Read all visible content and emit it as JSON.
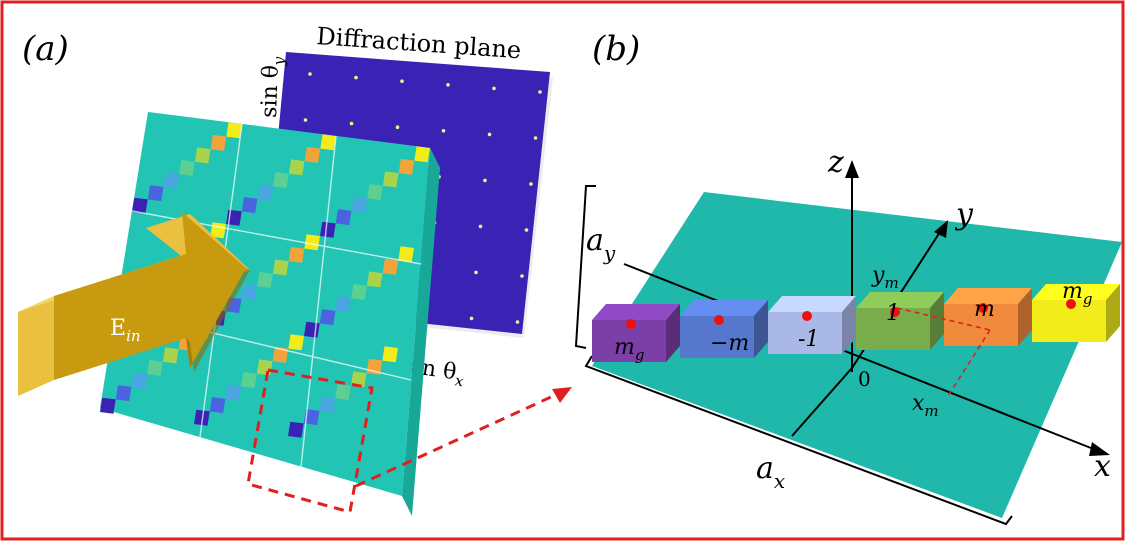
{
  "panel_a": {
    "label": "(a)",
    "title": "Diffraction plane",
    "axis_vertical": "sin θ",
    "axis_vertical_sub": "y",
    "axis_horizontal": "sin θ",
    "axis_horizontal_sub": "x",
    "arrow_label": "E",
    "arrow_label_sub": "in"
  },
  "panel_b": {
    "label": "(b)",
    "axis_z": "z",
    "axis_y": "y",
    "axis_x": "x",
    "origin": "0",
    "dim_ax": "a",
    "dim_ax_sub": "x",
    "dim_ay": "a",
    "dim_ay_sub": "y",
    "ym_label": "y",
    "ym_sub": "m",
    "xm_label": "x",
    "xm_sub": "m",
    "blocks": [
      {
        "label": "m",
        "sub": "g",
        "color": "#7b3fa8"
      },
      {
        "label": "−m",
        "sub": "",
        "color": "#5578cc"
      },
      {
        "label": "-1",
        "sub": "",
        "color": "#a9b8e6"
      },
      {
        "label": "1",
        "sub": "",
        "color": "#79ad4c"
      },
      {
        "label": "m",
        "sub": "",
        "color": "#f08a3c"
      },
      {
        "label": "m",
        "sub": "g",
        "color": "#f2ec1a"
      }
    ]
  },
  "colors": {
    "frame": "#e02020",
    "metasurface": "#22c4b4",
    "diffraction_plane": "#3a23b4",
    "arrow": "#c89a10",
    "dot": "#ee1010",
    "plane_b": "#1fb8aa"
  }
}
